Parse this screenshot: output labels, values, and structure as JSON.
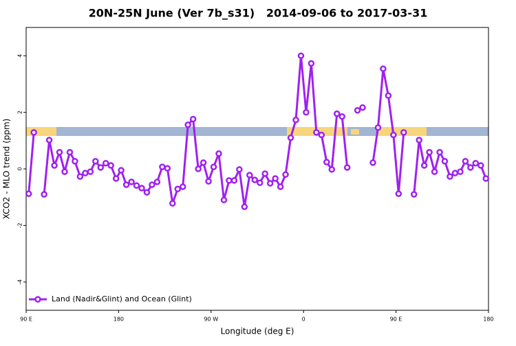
{
  "chart_data": {
    "type": "line",
    "title": "20N-25N June (Ver 7b_s31)   2014-09-06 to 2017-03-31",
    "x_label": "Longitude (deg E)",
    "y_label": "XCO2 - MLO trend (ppm)",
    "xlim": [
      90,
      540
    ],
    "xticks": [
      {
        "value": 90,
        "label": "90 E"
      },
      {
        "value": 180,
        "label": "180"
      },
      {
        "value": 270,
        "label": "90 W"
      },
      {
        "value": 360,
        "label": "0"
      },
      {
        "value": 450,
        "label": "90 E"
      },
      {
        "value": 540,
        "label": "180"
      }
    ],
    "ylim": [
      -5,
      5
    ],
    "yticks": [
      -4,
      -2,
      0,
      2,
      4
    ],
    "legend": "bottom-left",
    "x": [
      92.5,
      97.5,
      102.5,
      107.5,
      112.5,
      117.5,
      122.5,
      127.5,
      132.5,
      137.5,
      142.5,
      147.5,
      152.5,
      157.5,
      162.5,
      167.5,
      172.5,
      177.5,
      182.5,
      187.5,
      192.5,
      197.5,
      202.5,
      207.5,
      212.5,
      217.5,
      222.5,
      227.5,
      232.5,
      237.5,
      242.5,
      247.5,
      252.5,
      257.5,
      262.5,
      267.5,
      272.5,
      277.5,
      282.5,
      287.5,
      292.5,
      297.5,
      302.5,
      307.5,
      312.5,
      317.5,
      322.5,
      327.5,
      332.5,
      337.5,
      342.5,
      347.5,
      352.5,
      357.5,
      362.5,
      367.5,
      372.5,
      377.5,
      382.5,
      387.5,
      392.5,
      397.5,
      402.5,
      407.5,
      412.5,
      417.5,
      422.5,
      427.5,
      432.5,
      437.5,
      442.5,
      447.5,
      452.5,
      457.5,
      462.5,
      467.5,
      472.5,
      477.5,
      482.5,
      487.5,
      492.5,
      497.5,
      502.5,
      507.5,
      512.5,
      517.5,
      522.5,
      527.5,
      532.5,
      537.5
    ],
    "series": [
      {
        "name": "Land (Nadir&Glint) and Ocean (Glint)",
        "color": "#a020f0",
        "values": [
          -0.88,
          1.29,
          null,
          -0.9,
          1.02,
          0.12,
          0.59,
          -0.1,
          0.59,
          0.27,
          -0.27,
          -0.15,
          -0.1,
          0.27,
          0.05,
          0.2,
          0.12,
          -0.34,
          -0.05,
          -0.56,
          -0.46,
          -0.59,
          -0.68,
          -0.83,
          -0.56,
          -0.46,
          0.07,
          0.02,
          -1.22,
          -0.71,
          -0.63,
          1.56,
          1.76,
          0,
          0.22,
          -0.44,
          0.07,
          0.54,
          -1.1,
          -0.41,
          -0.41,
          -0.02,
          -1.34,
          -0.22,
          -0.39,
          -0.49,
          -0.17,
          -0.51,
          -0.34,
          -0.63,
          -0.2,
          1.1,
          1.73,
          4.0,
          2.0,
          3.73,
          1.29,
          1.2,
          0.24,
          -0.02,
          1.95,
          1.85,
          0.05,
          null,
          2.07,
          2.17,
          null,
          0.22,
          1.46,
          3.54,
          2.59,
          1.2,
          -0.88,
          1.29,
          null,
          -0.9,
          1.02,
          0.12,
          0.59,
          -0.1,
          0.59,
          0.27,
          -0.27,
          -0.15,
          -0.1,
          0.27,
          0.05,
          0.2,
          0.12,
          -0.34
        ]
      }
    ]
  }
}
